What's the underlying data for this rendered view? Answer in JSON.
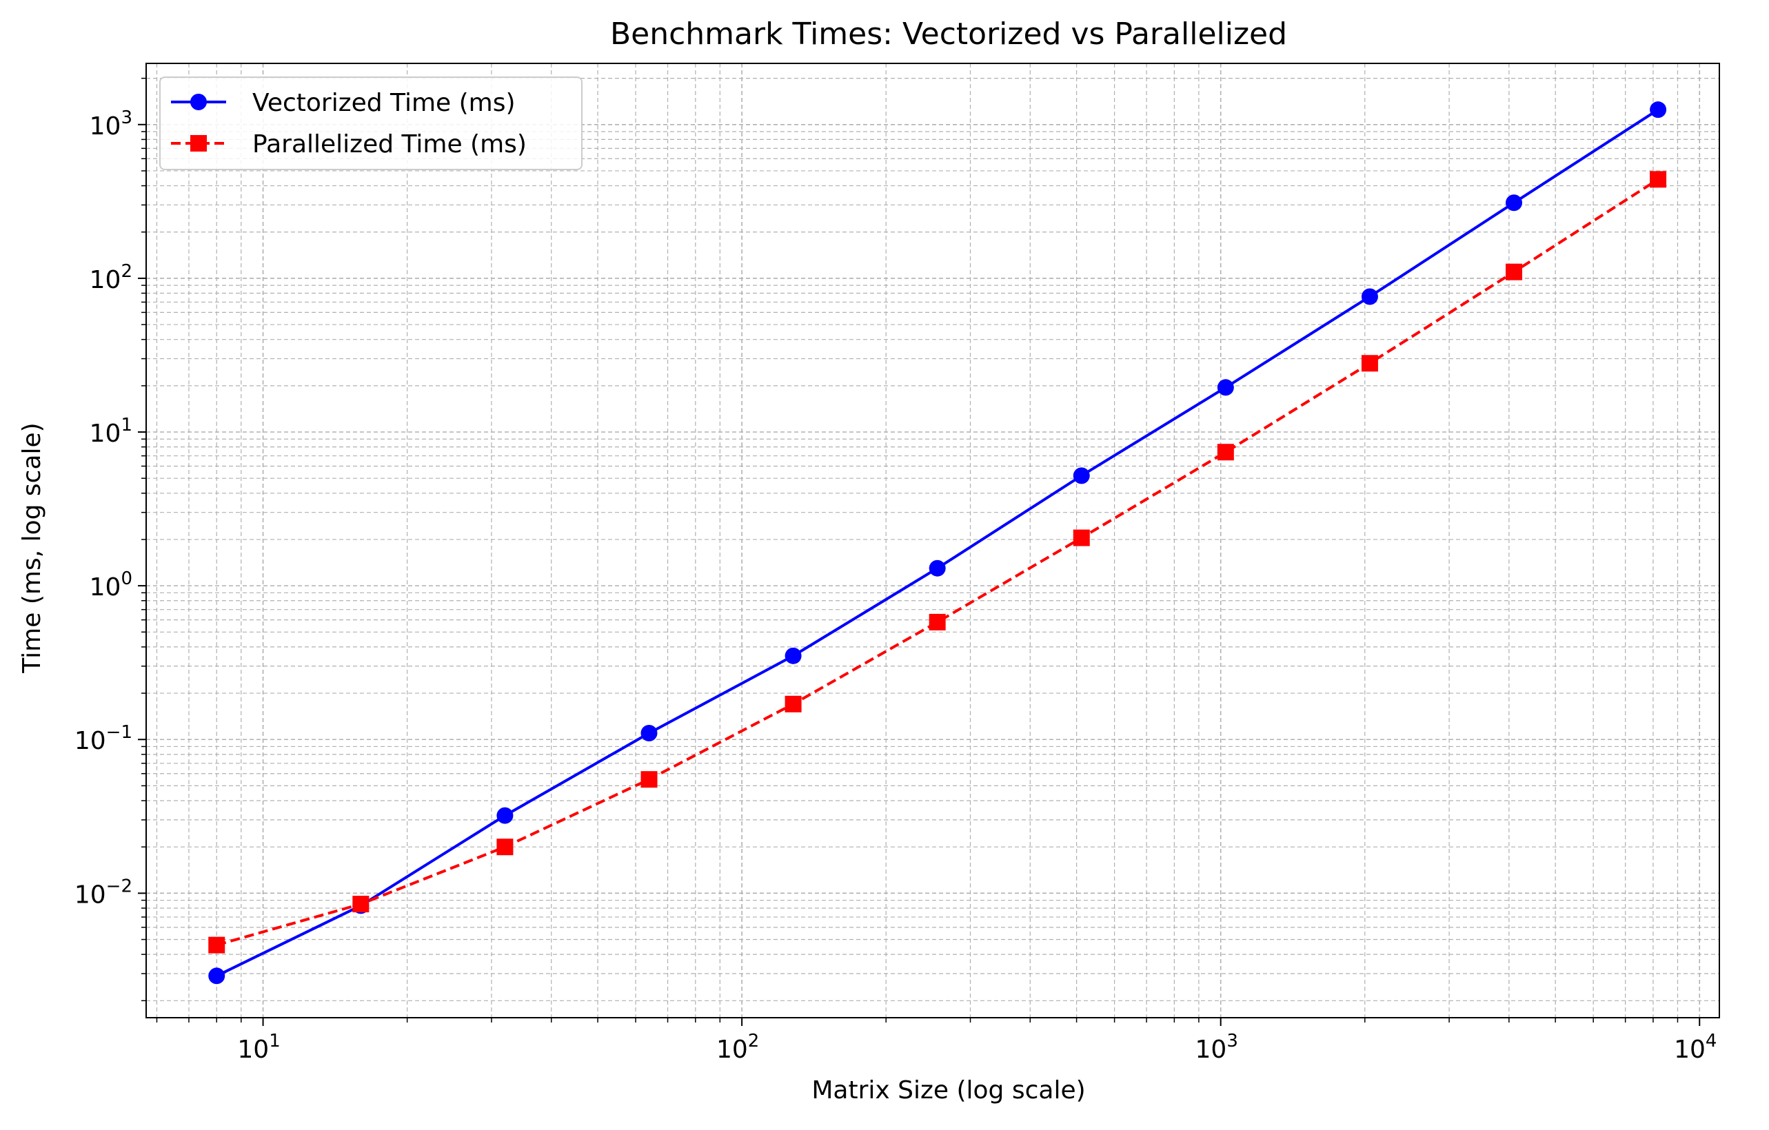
{
  "chart_data": {
    "type": "line",
    "title": "Benchmark Times: Vectorized vs Parallelized",
    "xlabel": "Matrix Size (log scale)",
    "ylabel": "Time (ms, log scale)",
    "xscale": "log",
    "yscale": "log",
    "xlim": [
      5.7,
      11000
    ],
    "ylim": [
      0.00155,
      2500
    ],
    "x_ticks": [
      {
        "base": "10",
        "exp": "1",
        "value": 10
      },
      {
        "base": "10",
        "exp": "2",
        "value": 100
      },
      {
        "base": "10",
        "exp": "3",
        "value": 1000
      },
      {
        "base": "10",
        "exp": "4",
        "value": 10000
      }
    ],
    "y_ticks": [
      {
        "base": "10",
        "exp": "−2",
        "value": 0.01
      },
      {
        "base": "10",
        "exp": "−1",
        "value": 0.1
      },
      {
        "base": "10",
        "exp": "0",
        "value": 1
      },
      {
        "base": "10",
        "exp": "1",
        "value": 10
      },
      {
        "base": "10",
        "exp": "2",
        "value": 100
      },
      {
        "base": "10",
        "exp": "3",
        "value": 1000
      }
    ],
    "grid": true,
    "legend_position": "top-left",
    "x": [
      8,
      16,
      32,
      64,
      128,
      256,
      512,
      1024,
      2048,
      4096,
      8192
    ],
    "series": [
      {
        "name": "Vectorized Time (ms)",
        "color": "#0000ff",
        "line_style": "solid",
        "marker": "circle",
        "values": [
          0.0029,
          0.0083,
          0.032,
          0.11,
          0.35,
          1.3,
          5.2,
          19.5,
          76,
          310,
          1250
        ]
      },
      {
        "name": "Parallelized Time (ms)",
        "color": "#ff0000",
        "line_style": "dashed",
        "marker": "square",
        "values": [
          0.0046,
          0.0085,
          0.02,
          0.055,
          0.17,
          0.58,
          2.05,
          7.4,
          28,
          110,
          440
        ]
      }
    ]
  }
}
